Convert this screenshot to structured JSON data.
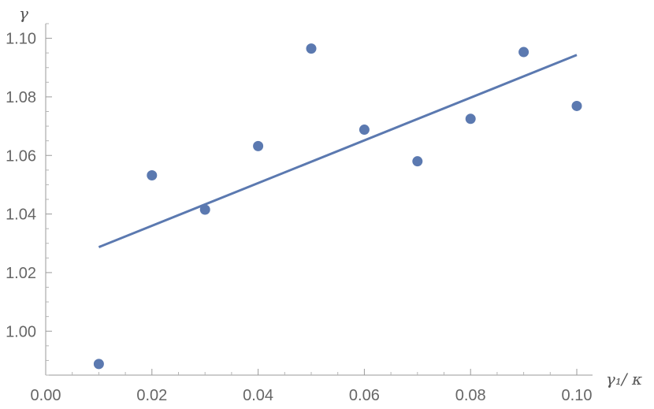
{
  "chart_data": {
    "type": "scatter",
    "title": "",
    "xlabel": "γ₁/ κ",
    "ylabel": "γ",
    "xlim": [
      0.0,
      0.1
    ],
    "ylim": [
      0.985,
      1.105
    ],
    "grid": false,
    "x_ticks": [
      "0.00",
      "0.02",
      "0.04",
      "0.06",
      "0.08",
      "0.10"
    ],
    "y_ticks": [
      "1.00",
      "1.02",
      "1.04",
      "1.06",
      "1.08",
      "1.10"
    ],
    "colors": {
      "marker": "#5B79B0",
      "line": "#5B79B0",
      "axis": "#9a9a9a"
    },
    "series": [
      {
        "type": "scatter",
        "x": [
          0.01,
          0.02,
          0.03,
          0.04,
          0.05,
          0.06,
          0.07,
          0.08,
          0.09,
          0.1
        ],
        "y": [
          0.9888,
          1.0532,
          1.0415,
          1.0632,
          1.0965,
          1.0688,
          1.058,
          1.0725,
          1.0953,
          1.0769
        ]
      },
      {
        "type": "line",
        "x": [
          0.01,
          0.1
        ],
        "y": [
          1.0287,
          1.0943
        ]
      }
    ]
  }
}
